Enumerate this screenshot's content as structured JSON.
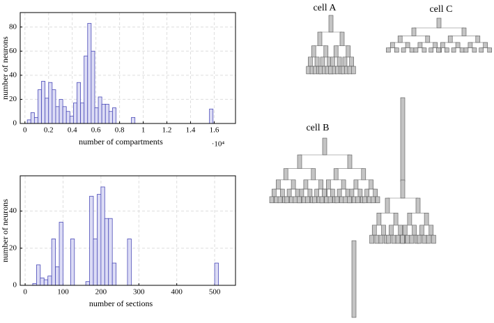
{
  "chart_data": [
    {
      "type": "histogram",
      "x_label": "number of compartments",
      "y_label": "number of neurons",
      "x_exponent": "·10⁴",
      "bins": [
        0.02,
        0.05,
        0.08,
        0.11,
        0.14,
        0.17,
        0.2,
        0.23,
        0.26,
        0.29,
        0.32,
        0.35,
        0.38,
        0.41,
        0.44,
        0.47,
        0.5,
        0.53,
        0.56,
        0.59,
        0.62,
        0.65,
        0.68,
        0.71,
        0.74,
        0.77,
        0.8,
        0.83,
        0.9,
        0.93,
        1.56,
        1.59
      ],
      "values": [
        3,
        9,
        5,
        28,
        35,
        21,
        34,
        28,
        14,
        20,
        14,
        10,
        6,
        17,
        34,
        17,
        56,
        83,
        60,
        13,
        22,
        16,
        16,
        10,
        13,
        0,
        0,
        0,
        5,
        0,
        12
      ],
      "color": "#dcdcf5",
      "edge_color": "#4a4ab8",
      "xlim": [
        -0.04,
        1.78
      ],
      "ylim": [
        0,
        92
      ],
      "xticks": [
        0,
        0.2,
        0.4,
        0.6,
        0.8,
        1,
        1.2,
        1.4,
        1.6
      ],
      "yticks": [
        0,
        20,
        40,
        60,
        80
      ],
      "grid": true
    },
    {
      "type": "histogram",
      "x_label": "number of sections",
      "y_label": "number of neurons",
      "bins": [
        20,
        30,
        40,
        50,
        60,
        70,
        80,
        90,
        100,
        110,
        120,
        130,
        140,
        150,
        160,
        170,
        180,
        190,
        200,
        210,
        220,
        230,
        240,
        250,
        260,
        270,
        280,
        290,
        500,
        510
      ],
      "values": [
        1,
        11,
        4,
        3,
        5,
        25,
        10,
        34,
        0,
        0,
        25,
        0,
        0,
        0,
        2,
        48,
        25,
        49,
        53,
        36,
        36,
        12,
        0,
        0,
        0,
        25,
        0,
        0,
        12
      ],
      "color": "#dcdcf5",
      "edge_color": "#4a4ab8",
      "xlim": [
        -13,
        555
      ],
      "ylim": [
        0,
        59
      ],
      "xticks": [
        0,
        100,
        200,
        300,
        400,
        500
      ],
      "yticks": [
        0,
        20,
        40
      ],
      "grid": true
    }
  ],
  "cells": [
    "cell A",
    "cell B",
    "cell C"
  ]
}
